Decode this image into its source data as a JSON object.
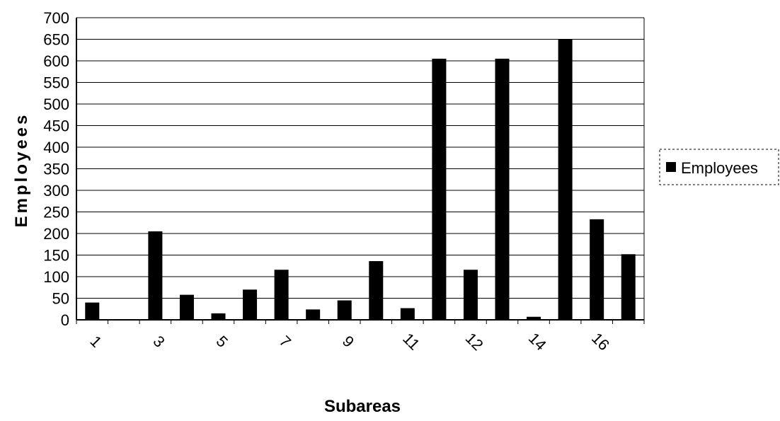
{
  "chart_data": {
    "type": "bar",
    "xlabel": "Subareas",
    "ylabel": "Employees",
    "ylim": [
      0,
      700
    ],
    "ytick_step": 50,
    "grid": true,
    "legend_placement": "right",
    "x_tick_labels": [
      "1",
      "3",
      "5",
      "7",
      "9",
      "11",
      "12",
      "14",
      "16"
    ],
    "series": [
      {
        "name": "Employees",
        "color": "#000000",
        "values": [
          40,
          0,
          205,
          58,
          15,
          70,
          116,
          24,
          45,
          136,
          27,
          605,
          116,
          605,
          7,
          650,
          233,
          152
        ]
      }
    ]
  }
}
